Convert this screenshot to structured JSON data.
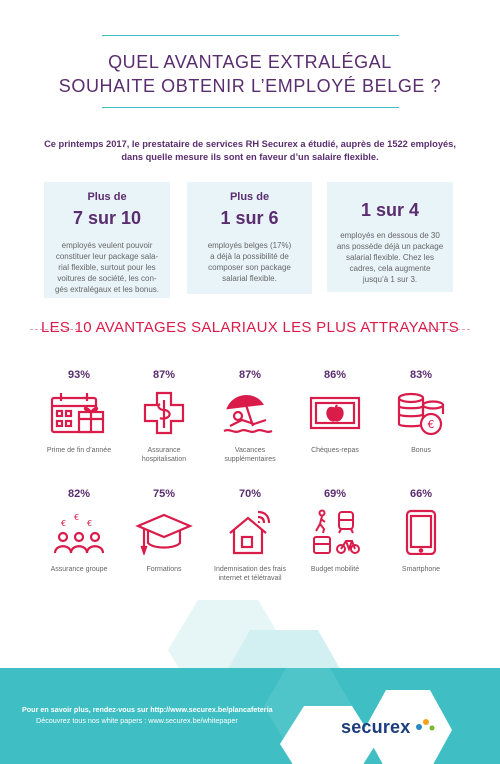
{
  "title_line1": "QUEL AVANTAGE EXTRALÉGAL",
  "title_line2": "SOUHAITE OBTENIR L’EMPLOYÉ BELGE ?",
  "intro_line1": "Ce printemps 2017, le prestataire de services RH Securex a étudié, auprès de 1522 employés,",
  "intro_line2": "dans quelle mesure ils sont en faveur d’un salaire flexible.",
  "stats": [
    {
      "pre": "Plus de",
      "big": "7 sur 10",
      "desc": [
        "employés veulent pouvoir",
        "constituer leur package sala-",
        "rial flexible, surtout pour les",
        "voitures de société, les con-",
        "gés extralégaux et les bonus."
      ]
    },
    {
      "pre": "Plus de",
      "big": "1 sur 6",
      "desc": [
        "employés belges (17%)",
        "a déjà la possibilité de",
        "composer son package",
        "salarial flexible."
      ]
    },
    {
      "pre": "",
      "big": "1 sur 4",
      "desc": [
        "employés en dessous de 30",
        "ans possède déjà un package",
        "salarial flexible. Chez les",
        "cadres, cela augmente",
        "jusqu’à 1 sur 3."
      ]
    }
  ],
  "section_title": "LES 10 AVANTAGES SALARIAUX LES PLUS ATTRAYANTS",
  "benefits": [
    {
      "pct": "93%",
      "label": [
        "Prime de fin d’année"
      ],
      "icon": "calendar-gift-icon"
    },
    {
      "pct": "87%",
      "label": [
        "Assurance",
        "hospitalisation"
      ],
      "icon": "medical-cross-icon"
    },
    {
      "pct": "87%",
      "label": [
        "Vacances",
        "supplémentaires"
      ],
      "icon": "beach-icon"
    },
    {
      "pct": "86%",
      "label": [
        "Chèques-repas"
      ],
      "icon": "banknote-apple-icon"
    },
    {
      "pct": "83%",
      "label": [
        "Bonus"
      ],
      "icon": "coins-icon"
    },
    {
      "pct": "82%",
      "label": [
        "Assurance groupe"
      ],
      "icon": "group-euro-icon"
    },
    {
      "pct": "75%",
      "label": [
        "Formations"
      ],
      "icon": "graduation-cap-icon"
    },
    {
      "pct": "70%",
      "label": [
        "Indemnisation des frais",
        "internet et télétravail"
      ],
      "icon": "home-wifi-icon"
    },
    {
      "pct": "69%",
      "label": [
        "Budget mobilité"
      ],
      "icon": "transport-icon"
    },
    {
      "pct": "66%",
      "label": [
        "Smartphone"
      ],
      "icon": "smartphone-icon"
    }
  ],
  "footer": {
    "line1": "Pour en savoir plus, rendez-vous sur http://www.securex.be/plancafeteria",
    "line2": "Découvrez tous nos white papers : www.securex.be/whitepaper"
  },
  "logo_text": "securex",
  "colors": {
    "purple": "#5a2d6f",
    "red": "#d91c4a",
    "teal": "#3fbfc3",
    "box": "#e9f4f9",
    "navy": "#1d3c7d"
  }
}
